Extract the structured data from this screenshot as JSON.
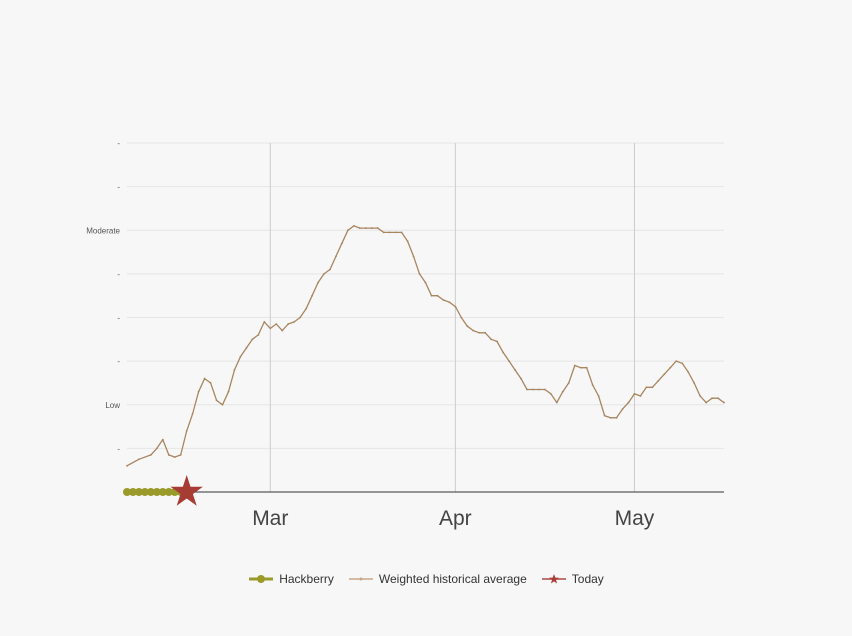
{
  "chart_data": {
    "type": "line",
    "y_tick_labels": [
      "-",
      "Low",
      "-",
      "-",
      "-",
      "Moderate",
      "-",
      "-"
    ],
    "ylim": [
      0,
      8
    ],
    "x_tick_labels": [
      "Mar",
      "Apr",
      "May"
    ],
    "x_tick_days": [
      29,
      60,
      90
    ],
    "xlim": [
      5,
      105
    ],
    "grid": true,
    "legend_position": "bottom",
    "series": [
      {
        "name": "Weighted historical average",
        "color": "#a88660",
        "x": [
          5,
          7,
          9,
          10,
          11,
          12,
          13,
          14,
          15,
          16,
          17,
          18,
          19,
          20,
          21,
          22,
          23,
          24,
          25,
          26,
          27,
          28,
          29,
          30,
          31,
          32,
          33,
          34,
          35,
          36,
          37,
          38,
          39,
          40,
          41,
          42,
          43,
          44,
          45,
          46,
          47,
          48,
          49,
          50,
          51,
          52,
          53,
          54,
          55,
          56,
          57,
          58,
          59,
          60,
          61,
          62,
          63,
          64,
          65,
          66,
          67,
          68,
          69,
          70,
          71,
          72,
          73,
          74,
          75,
          76,
          77,
          78,
          79,
          80,
          81,
          82,
          83,
          84,
          85,
          86,
          87,
          88,
          89,
          90,
          91,
          92,
          93,
          94,
          95,
          96,
          97,
          98,
          99,
          100,
          101,
          102,
          103,
          104,
          105
        ],
        "y": [
          0.6,
          0.75,
          0.85,
          1.0,
          1.2,
          0.85,
          0.8,
          0.85,
          1.4,
          1.8,
          2.3,
          2.6,
          2.5,
          2.1,
          2.0,
          2.3,
          2.8,
          3.1,
          3.3,
          3.5,
          3.6,
          3.9,
          3.75,
          3.85,
          3.7,
          3.85,
          3.9,
          4.0,
          4.2,
          4.5,
          4.8,
          5.0,
          5.1,
          5.4,
          5.7,
          6.0,
          6.1,
          6.05,
          6.05,
          6.05,
          6.05,
          5.95,
          5.95,
          5.95,
          5.95,
          5.75,
          5.4,
          5.0,
          4.8,
          4.5,
          4.5,
          4.4,
          4.35,
          4.25,
          4.0,
          3.8,
          3.7,
          3.65,
          3.65,
          3.5,
          3.45,
          3.2,
          3.0,
          2.8,
          2.6,
          2.35,
          2.35,
          2.35,
          2.35,
          2.25,
          2.05,
          2.3,
          2.5,
          2.9,
          2.85,
          2.85,
          2.45,
          2.2,
          1.75,
          1.7,
          1.7,
          1.9,
          2.05,
          2.25,
          2.2,
          2.4,
          2.4,
          2.55,
          2.7,
          2.85,
          3.0,
          2.95,
          2.75,
          2.5,
          2.2,
          2.05,
          2.15,
          2.15,
          2.05
        ]
      },
      {
        "name": "Hackberry",
        "color": "#9a9a2a",
        "x": [
          5,
          6,
          7,
          8,
          9,
          10,
          11,
          12,
          13,
          14,
          15
        ],
        "y": [
          0,
          0,
          0,
          0,
          0,
          0,
          0,
          0,
          0,
          0,
          0
        ]
      },
      {
        "name": "Today",
        "color": "#a63c34",
        "x": [
          15
        ],
        "y": [
          0
        ]
      }
    ]
  }
}
